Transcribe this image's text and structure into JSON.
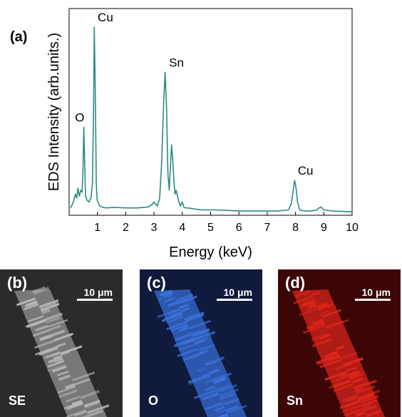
{
  "chart_data": {
    "type": "line",
    "panel_label": "(a)",
    "xlabel": "Energy (keV)",
    "ylabel": "EDS Intensity (arb.units.)",
    "xlim": [
      0.0,
      10.0
    ],
    "ylim": [
      0,
      100
    ],
    "xticks": [
      1,
      2,
      3,
      4,
      5,
      6,
      7,
      8,
      9,
      10
    ],
    "line_color": "#2a8a88",
    "series": [
      {
        "x": [
          0.05,
          0.15,
          0.22,
          0.27,
          0.31,
          0.36,
          0.41,
          0.46,
          0.49,
          0.52,
          0.55,
          0.58,
          0.63,
          0.7,
          0.77,
          0.82,
          0.86,
          0.89,
          0.93,
          0.96,
          0.99,
          1.03,
          1.08,
          1.15,
          1.3,
          1.6,
          2.0,
          2.4,
          2.8,
          2.95,
          3.0,
          3.05,
          3.12,
          3.2,
          3.27,
          3.34,
          3.39,
          3.44,
          3.49,
          3.54,
          3.58,
          3.62,
          3.66,
          3.7,
          3.74,
          3.78,
          3.83,
          3.88,
          3.93,
          4.0,
          4.05,
          4.12,
          4.2,
          4.4,
          4.7,
          5.2,
          6.0,
          6.8,
          7.4,
          7.75,
          7.85,
          7.92,
          7.97,
          8.02,
          8.07,
          8.15,
          8.3,
          8.55,
          8.75,
          8.83,
          8.9,
          9.0,
          9.3,
          9.7,
          10.0
        ],
        "y": [
          3,
          6,
          10,
          8,
          13,
          9,
          12,
          11,
          24,
          44,
          26,
          9,
          7,
          6,
          8,
          15,
          48,
          95,
          56,
          15,
          7,
          5.5,
          4,
          3.5,
          3,
          3.3,
          3,
          3,
          3.5,
          5,
          6,
          5,
          4,
          8,
          26,
          56,
          72,
          55,
          20,
          12,
          24,
          35,
          28,
          17,
          10,
          12,
          9,
          6,
          4,
          6,
          3.5,
          3,
          3,
          2.5,
          2,
          2,
          1.5,
          1.5,
          1.5,
          2,
          5,
          12,
          17,
          13,
          6,
          2,
          1.5,
          1.5,
          2,
          3,
          3.5,
          2,
          1.5,
          1.2,
          1
        ]
      }
    ],
    "annotations": [
      {
        "text": "O",
        "x": 0.5,
        "y": 44
      },
      {
        "text": "Cu",
        "x": 0.93,
        "y": 95
      },
      {
        "text": "Sn",
        "x": 3.44,
        "y": 72
      },
      {
        "text": "Cu",
        "x": 8.0,
        "y": 17
      }
    ]
  },
  "panels": [
    {
      "letter": "(b)",
      "scale": "10 μm",
      "channel": "SE",
      "color": "#b8b8b8",
      "bg": "#2b2b2b"
    },
    {
      "letter": "(c)",
      "scale": "10 μm",
      "channel": "O",
      "color": "#3a72dc",
      "bg": "#101a3c"
    },
    {
      "letter": "(d)",
      "scale": "10 μm",
      "channel": "Sn",
      "color": "#e0261c",
      "bg": "#3c0606"
    }
  ]
}
